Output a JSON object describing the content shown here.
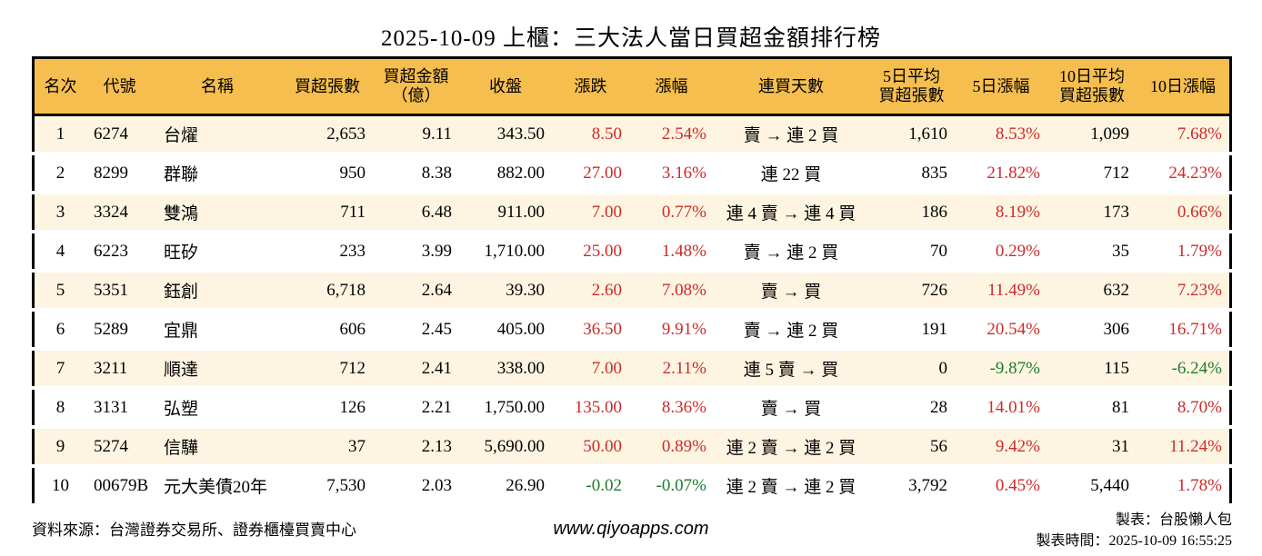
{
  "title": "2025-10-09 上櫃：三大法人當日買超金額排行榜",
  "colors": {
    "header_bg": "#f6be4e",
    "row_alt_bg": "#fdf5e1",
    "up_red": "#cd2a2a",
    "down_green": "#1e7b2e",
    "border": "#000000"
  },
  "chart_data": {
    "type": "table",
    "title": "2025-10-09 上櫃：三大法人當日買超金額排行榜",
    "columns": [
      {
        "key": "rank",
        "label": "名次",
        "align": "center",
        "colored": false
      },
      {
        "key": "code",
        "label": "代號",
        "align": "left",
        "colored": false
      },
      {
        "key": "name",
        "label": "名稱",
        "align": "left",
        "colored": false
      },
      {
        "key": "buy_volume",
        "label": "買超張數",
        "align": "right",
        "colored": false
      },
      {
        "key": "buy_amount",
        "label": "買超金額\n（億）",
        "align": "right",
        "colored": false
      },
      {
        "key": "close",
        "label": "收盤",
        "align": "right",
        "colored": false
      },
      {
        "key": "change",
        "label": "漲跌",
        "align": "right",
        "colored": true
      },
      {
        "key": "change_pct",
        "label": "漲幅",
        "align": "right",
        "colored": true
      },
      {
        "key": "streak",
        "label": "連買天數",
        "align": "center",
        "colored": false
      },
      {
        "key": "avg5",
        "label": "5日平均\n買超張數",
        "align": "right",
        "colored": false
      },
      {
        "key": "pct5",
        "label": "5日漲幅",
        "align": "right",
        "colored": true
      },
      {
        "key": "avg10",
        "label": "10日平均\n買超張數",
        "align": "right",
        "colored": false
      },
      {
        "key": "pct10",
        "label": "10日漲幅",
        "align": "right",
        "colored": true
      }
    ],
    "rows": [
      {
        "rank": "1",
        "code": "6274",
        "name": "台燿",
        "buy_volume": "2,653",
        "buy_amount": "9.11",
        "close": "343.50",
        "change": "8.50",
        "change_pct": "2.54%",
        "streak": "賣 → 連 2 買",
        "avg5": "1,610",
        "pct5": "8.53%",
        "avg10": "1,099",
        "pct10": "7.68%"
      },
      {
        "rank": "2",
        "code": "8299",
        "name": "群聯",
        "buy_volume": "950",
        "buy_amount": "8.38",
        "close": "882.00",
        "change": "27.00",
        "change_pct": "3.16%",
        "streak": "連 22 買",
        "avg5": "835",
        "pct5": "21.82%",
        "avg10": "712",
        "pct10": "24.23%"
      },
      {
        "rank": "3",
        "code": "3324",
        "name": "雙鴻",
        "buy_volume": "711",
        "buy_amount": "6.48",
        "close": "911.00",
        "change": "7.00",
        "change_pct": "0.77%",
        "streak": "連 4 賣 → 連 4 買",
        "avg5": "186",
        "pct5": "8.19%",
        "avg10": "173",
        "pct10": "0.66%"
      },
      {
        "rank": "4",
        "code": "6223",
        "name": "旺矽",
        "buy_volume": "233",
        "buy_amount": "3.99",
        "close": "1,710.00",
        "change": "25.00",
        "change_pct": "1.48%",
        "streak": "賣 → 連 2 買",
        "avg5": "70",
        "pct5": "0.29%",
        "avg10": "35",
        "pct10": "1.79%"
      },
      {
        "rank": "5",
        "code": "5351",
        "name": "鈺創",
        "buy_volume": "6,718",
        "buy_amount": "2.64",
        "close": "39.30",
        "change": "2.60",
        "change_pct": "7.08%",
        "streak": "賣 → 買",
        "avg5": "726",
        "pct5": "11.49%",
        "avg10": "632",
        "pct10": "7.23%"
      },
      {
        "rank": "6",
        "code": "5289",
        "name": "宜鼎",
        "buy_volume": "606",
        "buy_amount": "2.45",
        "close": "405.00",
        "change": "36.50",
        "change_pct": "9.91%",
        "streak": "賣 → 連 2 買",
        "avg5": "191",
        "pct5": "20.54%",
        "avg10": "306",
        "pct10": "16.71%"
      },
      {
        "rank": "7",
        "code": "3211",
        "name": "順達",
        "buy_volume": "712",
        "buy_amount": "2.41",
        "close": "338.00",
        "change": "7.00",
        "change_pct": "2.11%",
        "streak": "連 5 賣 → 買",
        "avg5": "0",
        "pct5": "-9.87%",
        "avg10": "115",
        "pct10": "-6.24%"
      },
      {
        "rank": "8",
        "code": "3131",
        "name": "弘塑",
        "buy_volume": "126",
        "buy_amount": "2.21",
        "close": "1,750.00",
        "change": "135.00",
        "change_pct": "8.36%",
        "streak": "賣 → 買",
        "avg5": "28",
        "pct5": "14.01%",
        "avg10": "81",
        "pct10": "8.70%"
      },
      {
        "rank": "9",
        "code": "5274",
        "name": "信驊",
        "buy_volume": "37",
        "buy_amount": "2.13",
        "close": "5,690.00",
        "change": "50.00",
        "change_pct": "0.89%",
        "streak": "連 2 賣 → 連 2 買",
        "avg5": "56",
        "pct5": "9.42%",
        "avg10": "31",
        "pct10": "11.24%"
      },
      {
        "rank": "10",
        "code": "00679B",
        "name": "元大美債20年",
        "buy_volume": "7,530",
        "buy_amount": "2.03",
        "close": "26.90",
        "change": "-0.02",
        "change_pct": "-0.07%",
        "streak": "連 2 賣 → 連 2 買",
        "avg5": "3,792",
        "pct5": "0.45%",
        "avg10": "5,440",
        "pct10": "1.78%"
      }
    ]
  },
  "footer": {
    "source": "資料來源：台灣證券交易所、證券櫃檯買賣中心",
    "site": "www.qiyoapps.com",
    "credit": "製表：台股懶人包",
    "generated": "製表時間：2025-10-09 16:55:25"
  }
}
